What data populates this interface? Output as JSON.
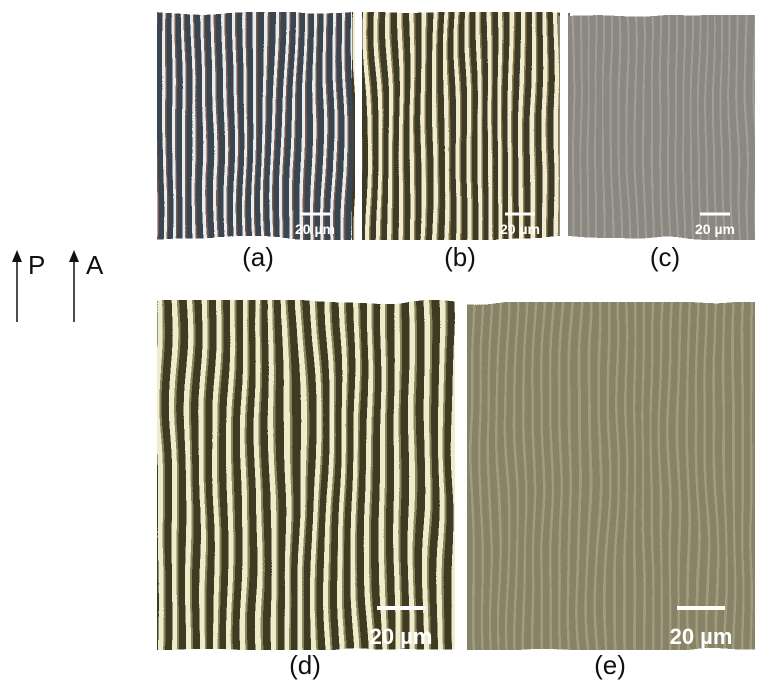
{
  "polarizer_label": "P",
  "analyzer_label": "A",
  "panels": [
    {
      "label": "(a)",
      "scale_bar": "20 µm"
    },
    {
      "label": "(b)",
      "scale_bar": "20 µm"
    },
    {
      "label": "(c)",
      "scale_bar": "20 µm"
    },
    {
      "label": "(d)",
      "scale_bar": "20 µm"
    },
    {
      "label": "(e)",
      "scale_bar": "20 µm"
    }
  ]
}
